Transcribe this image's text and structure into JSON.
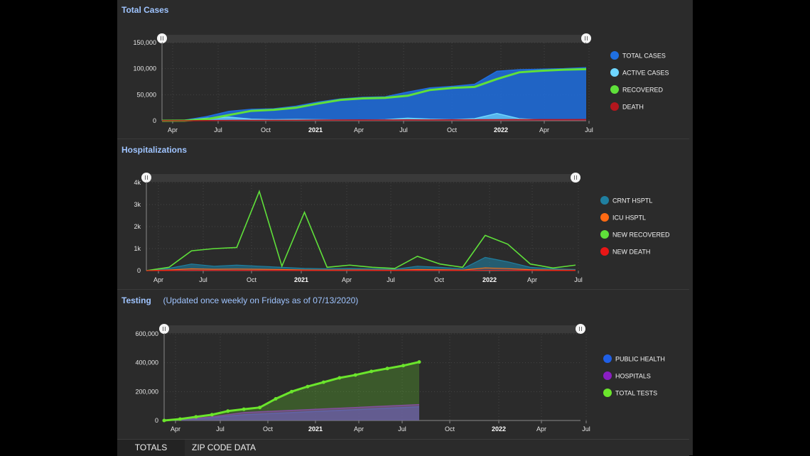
{
  "sections": {
    "total_cases": {
      "title": "Total Cases"
    },
    "hospitalizations": {
      "title": "Hospitalizations"
    },
    "testing": {
      "title": "Testing",
      "subtitle": "(Updated once weekly on Fridays as of 07/13/2020)"
    }
  },
  "tabs": [
    {
      "label": "TOTALS"
    },
    {
      "label": "ZIP CODE DATA"
    }
  ],
  "colors": {
    "total": "#1f6fe0",
    "active": "#6fd6ff",
    "recovered": "#5fe03a",
    "death": "#b3161d",
    "crnt": "#1f7fa0",
    "icu": "#ff6a13",
    "new_death": "#e81616",
    "public_health": "#1f5fe6",
    "hospitals": "#8a1ec2",
    "total_tests": "#6be52c"
  },
  "chart_data": [
    {
      "id": "cases",
      "type": "area",
      "title": "Total Cases",
      "x_ticks": [
        "Apr",
        "Jul",
        "Oct",
        "2021",
        "Apr",
        "Jul",
        "Oct",
        "2022",
        "Apr",
        "Jul"
      ],
      "y_ticks": [
        "0",
        "50,000",
        "100,000",
        "150,000"
      ],
      "ylim": [
        0,
        150000
      ],
      "x": [
        "2020-03",
        "2020-05",
        "2020-07",
        "2020-08",
        "2020-09",
        "2020-10",
        "2020-12",
        "2021-02",
        "2021-04",
        "2021-06",
        "2021-07",
        "2021-08",
        "2021-09",
        "2021-11",
        "2021-12",
        "2022-01",
        "2022-02",
        "2022-04",
        "2022-06",
        "2022-07"
      ],
      "legend": [
        "TOTAL CASES",
        "ACTIVE CASES",
        "RECOVERED",
        "DEATH"
      ],
      "series": [
        {
          "name": "TOTAL CASES",
          "values": [
            0,
            1000,
            8000,
            18000,
            22000,
            23000,
            28000,
            36000,
            42000,
            45000,
            46000,
            55000,
            63000,
            66000,
            70000,
            95000,
            98000,
            99000,
            100000,
            102000
          ]
        },
        {
          "name": "ACTIVE CASES",
          "values": [
            0,
            800,
            5000,
            7000,
            3000,
            2000,
            2500,
            2000,
            1500,
            1000,
            2000,
            5000,
            3000,
            2000,
            4000,
            14000,
            4000,
            1500,
            1000,
            2000
          ]
        },
        {
          "name": "RECOVERED",
          "values": [
            0,
            200,
            3000,
            11000,
            19000,
            21000,
            25000,
            33000,
            40000,
            43000,
            44000,
            48000,
            59000,
            63000,
            65000,
            80000,
            93000,
            96000,
            98000,
            99000
          ]
        },
        {
          "name": "DEATH",
          "values": [
            0,
            50,
            300,
            600,
            800,
            900,
            1100,
            1300,
            1450,
            1500,
            1550,
            1650,
            1750,
            1850,
            1950,
            2100,
            2200,
            2250,
            2300,
            2350
          ]
        }
      ]
    },
    {
      "id": "hosp",
      "type": "line",
      "title": "Hospitalizations",
      "x_ticks": [
        "Apr",
        "Jul",
        "Oct",
        "2021",
        "Apr",
        "Jul",
        "Oct",
        "2022",
        "Apr",
        "Jul"
      ],
      "y_ticks": [
        "0",
        "1k",
        "2k",
        "3k",
        "4k"
      ],
      "ylim": [
        0,
        4000
      ],
      "x": [
        "2020-04",
        "2020-06",
        "2020-07",
        "2020-07b",
        "2020-08",
        "2020-08b",
        "2020-09",
        "2020-09b",
        "2020-10",
        "2020-12",
        "2021-03",
        "2021-06",
        "2021-08",
        "2021-09",
        "2021-11",
        "2022-01",
        "2022-01b",
        "2022-02",
        "2022-04",
        "2022-07"
      ],
      "legend": [
        "CRNT HSPTL",
        "ICU HSPTL",
        "NEW RECOVERED",
        "NEW DEATH"
      ],
      "series": [
        {
          "name": "CRNT HSPTL",
          "values": [
            0,
            100,
            300,
            200,
            250,
            200,
            150,
            100,
            80,
            100,
            80,
            60,
            200,
            150,
            80,
            600,
            400,
            150,
            80,
            50
          ]
        },
        {
          "name": "ICU HSPTL",
          "values": [
            0,
            30,
            80,
            60,
            70,
            60,
            50,
            30,
            25,
            30,
            25,
            20,
            50,
            40,
            25,
            120,
            90,
            40,
            25,
            15
          ]
        },
        {
          "name": "NEW RECOVERED",
          "values": [
            0,
            150,
            900,
            1000,
            1050,
            3600,
            200,
            2650,
            150,
            250,
            150,
            100,
            650,
            300,
            150,
            1600,
            1200,
            300,
            120,
            250
          ]
        },
        {
          "name": "NEW DEATH",
          "values": [
            0,
            5,
            15,
            10,
            12,
            10,
            8,
            8,
            6,
            10,
            8,
            5,
            12,
            10,
            6,
            20,
            15,
            8,
            4,
            3
          ]
        }
      ]
    },
    {
      "id": "testing",
      "type": "area",
      "title": "Testing",
      "x_ticks": [
        "Apr",
        "Jul",
        "Oct",
        "2021",
        "Apr",
        "Jul",
        "Oct",
        "2022",
        "Apr",
        "Jul"
      ],
      "y_ticks": [
        "0",
        "200,000",
        "400,000",
        "600,000"
      ],
      "ylim": [
        0,
        600000
      ],
      "x": [
        "2020-03",
        "2020-05",
        "2020-06",
        "2020-07",
        "2020-08",
        "2020-09",
        "2020-10",
        "2020-11",
        "2020-12",
        "2021-01",
        "2021-02",
        "2021-03",
        "2021-04",
        "2021-05",
        "2021-06",
        "2021-07",
        "2021-08"
      ],
      "legend": [
        "PUBLIC HEALTH",
        "HOSPITALS",
        "TOTAL TESTS"
      ],
      "series": [
        {
          "name": "PUBLIC HEALTH",
          "values": [
            0,
            5000,
            10000,
            18000,
            30000,
            40000,
            45000,
            50000,
            55000,
            60000,
            65000,
            70000,
            75000,
            80000,
            85000,
            90000,
            95000
          ]
        },
        {
          "name": "HOSPITALS",
          "values": [
            0,
            8000,
            15000,
            25000,
            40000,
            55000,
            60000,
            65000,
            70000,
            75000,
            80000,
            85000,
            90000,
            95000,
            100000,
            105000,
            110000
          ]
        },
        {
          "name": "TOTAL TESTS",
          "values": [
            0,
            10000,
            25000,
            40000,
            65000,
            78000,
            90000,
            150000,
            200000,
            235000,
            265000,
            295000,
            315000,
            340000,
            360000,
            380000,
            405000
          ]
        }
      ]
    }
  ]
}
